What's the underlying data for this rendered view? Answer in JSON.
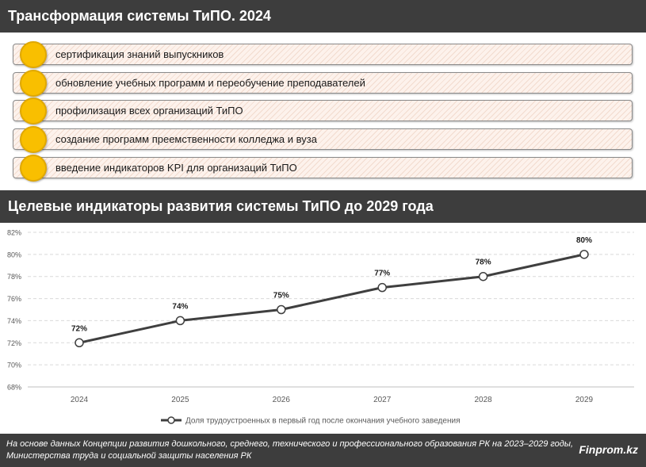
{
  "header1": {
    "title": "Трансформация системы ТиПО. 2024"
  },
  "items": [
    {
      "label": "сертификация знаний выпускников"
    },
    {
      "label": "обновление учебных программ и переобучение преподавателей"
    },
    {
      "label": "профилизация всех организаций ТиПО"
    },
    {
      "label": "создание программ преемственности колледжа и вуза"
    },
    {
      "label": "введение индикаторов KPI для организаций ТиПО"
    }
  ],
  "header2": {
    "title": "Целевые индикаторы развития системы ТиПО до 2029 года"
  },
  "colors": {
    "header_bg": "#3d3d3d",
    "circle": "#f9bf00",
    "line": "#3f3f3f",
    "item_bg": "#fdf2ec"
  },
  "chart_data": {
    "type": "line",
    "categories": [
      "2024",
      "2025",
      "2026",
      "2027",
      "2028",
      "2029"
    ],
    "series": [
      {
        "name": "Доля трудоустроенных в первый год после окончания учебного заведения",
        "values": [
          72,
          74,
          75,
          77,
          78,
          80
        ],
        "value_labels": [
          "72%",
          "74%",
          "75%",
          "77%",
          "78%",
          "80%"
        ]
      }
    ],
    "ylim": [
      68,
      82
    ],
    "yticks": [
      "68%",
      "70%",
      "72%",
      "74%",
      "76%",
      "78%",
      "80%",
      "82%"
    ],
    "ytick_values": [
      68,
      70,
      72,
      74,
      76,
      78,
      80,
      82
    ],
    "grid": true,
    "legend_position": "bottom"
  },
  "footer": {
    "source_line1": "На основе данных Концепции развития дошкольного, среднего, технического и профессионального образования РК на 2023–2029 годы,",
    "source_line2": "Министерства труда и социальной защиты населения РК",
    "brand": "Finprom.kz"
  }
}
